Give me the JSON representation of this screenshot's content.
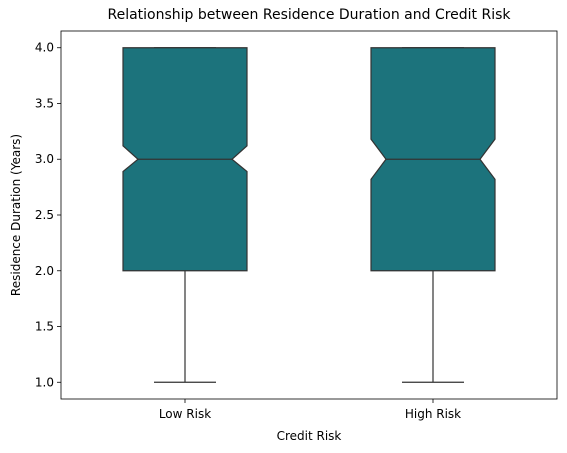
{
  "chart_data": {
    "type": "boxplot",
    "title": "Relationship between Residence Duration and Credit Risk",
    "xlabel": "Credit Risk",
    "ylabel": "Residence Duration (Years)",
    "categories": [
      "Low Risk",
      "High Risk"
    ],
    "ylim": [
      0.85,
      4.15
    ],
    "yticks": [
      "1.0",
      "1.5",
      "2.0",
      "2.5",
      "3.0",
      "3.5",
      "4.0"
    ],
    "notched": true,
    "grid": false,
    "legend": "none",
    "box_color": "#1c737c",
    "line_color": "#333333",
    "boxes": [
      {
        "category": "Low Risk",
        "whisker_low": 1.0,
        "q1": 2.0,
        "median": 3.0,
        "q3": 4.0,
        "whisker_high": 4.0,
        "notch_low": 2.89,
        "notch_high": 3.12
      },
      {
        "category": "High Risk",
        "whisker_low": 1.0,
        "q1": 2.0,
        "median": 3.0,
        "q3": 4.0,
        "whisker_high": 4.0,
        "notch_low": 2.82,
        "notch_high": 3.18
      }
    ]
  }
}
